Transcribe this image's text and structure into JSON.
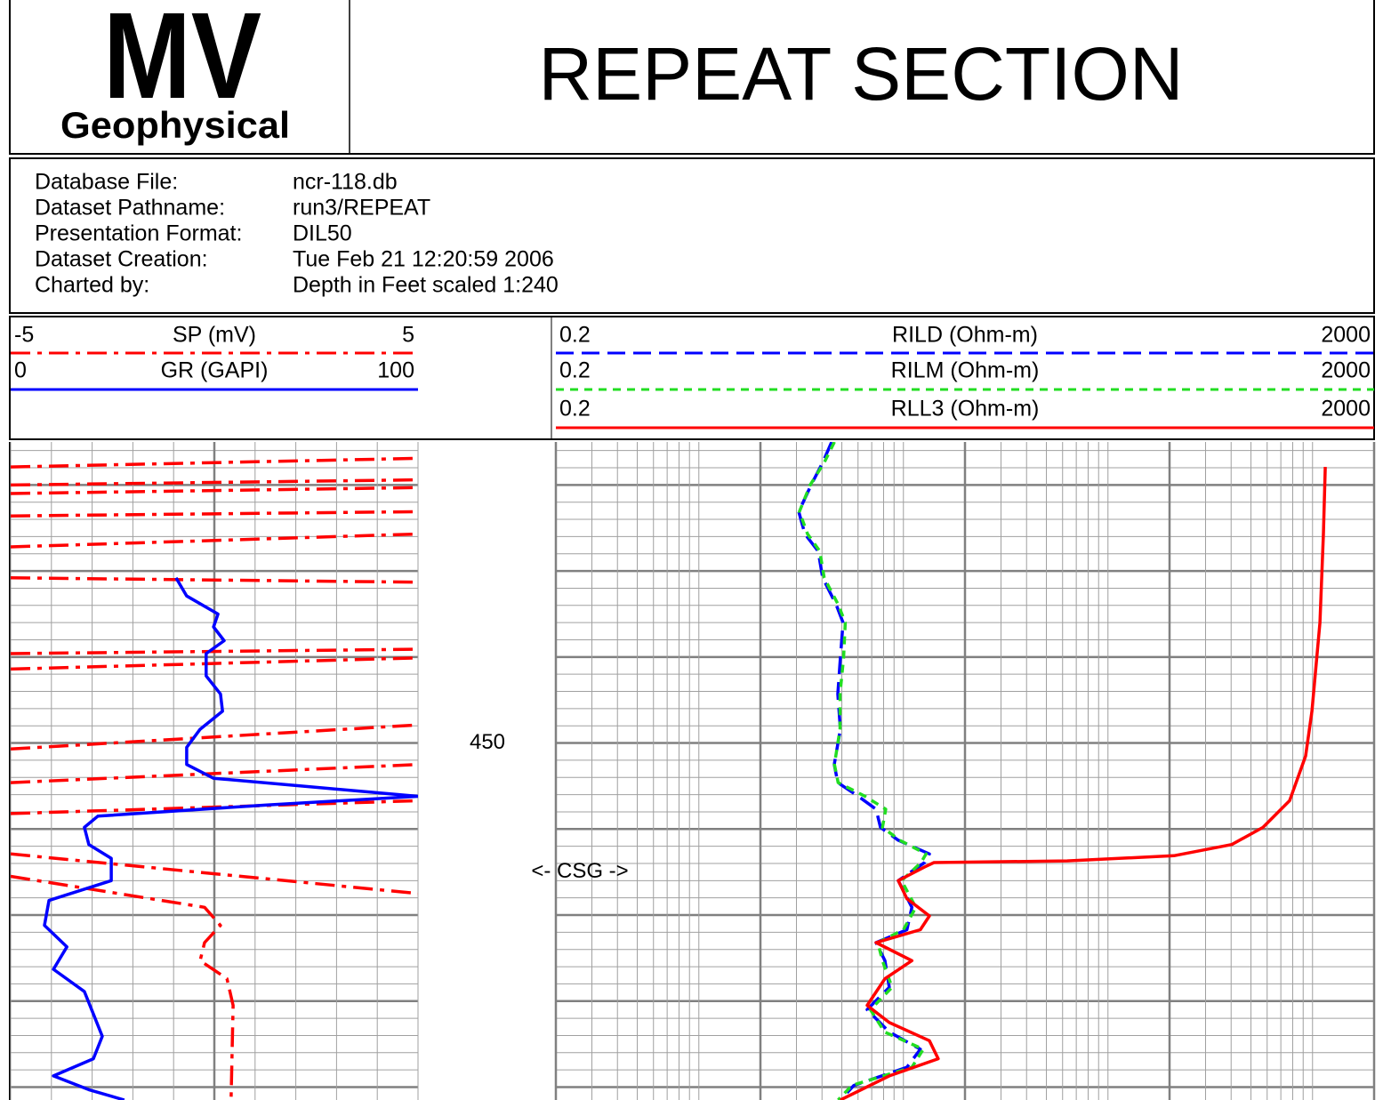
{
  "header": {
    "logo_main": "MV",
    "logo_sub": "Geophysical",
    "title": "REPEAT SECTION"
  },
  "info": [
    [
      "Database File:",
      "ncr-118.db"
    ],
    [
      "Dataset Pathname:",
      "run3/REPEAT"
    ],
    [
      "Presentation Format:",
      "DIL50"
    ],
    [
      "Dataset Creation:",
      "Tue Feb 21 12:20:59 2006"
    ],
    [
      "Charted by:",
      "Depth in Feet scaled 1:240"
    ]
  ],
  "chart_data": {
    "type": "well-log",
    "depth_label": 450,
    "annotation": "<- CSG ->",
    "annotation_depth": 465.0,
    "ylim": [
      415,
      491.5
    ],
    "yticks": [
      420,
      430,
      440,
      450,
      460,
      470,
      480,
      490
    ],
    "minor_yticks": [
      416,
      418,
      420,
      422,
      424,
      426,
      428,
      430,
      432,
      434,
      436,
      438,
      440,
      442,
      444,
      446,
      448,
      450,
      452,
      454,
      456,
      458,
      460,
      462,
      464,
      466,
      468,
      470,
      472,
      474,
      476,
      478,
      480,
      482,
      484,
      486,
      488,
      490
    ],
    "tracks": [
      {
        "scale": "linear",
        "xlim": [
          0,
          100
        ],
        "xticks": [
          0,
          10,
          20,
          30,
          40,
          50,
          60,
          70,
          80,
          90,
          100
        ],
        "major_xticks": [
          50
        ],
        "series": [
          {
            "name": "SP (mV)",
            "color": "#ff0000",
            "dash": "dashdot",
            "xlim": [
              -5,
              5
            ],
            "depth": [
              417.9,
              416.9,
              null,
              420.0,
              419.4,
              null,
              421.0,
              420.3,
              null,
              423.6,
              423.1,
              null,
              427.2,
              425.7,
              null,
              430.8,
              431.3,
              null,
              439.6,
              439.1,
              null,
              441.4,
              440.1,
              null,
              450.7,
              447.9,
              null,
              454.6,
              452.5,
              null,
              458.2,
              456.7,
              null,
              462.9,
              467.5,
              null,
              465.5,
              469.1,
              471.2,
              473.2,
              475.3,
              477.4,
              480.5,
              491.5
            ],
            "values": [
              -5,
              5,
              null,
              -5,
              5,
              null,
              -5,
              5,
              null,
              -5,
              5,
              null,
              -5,
              5,
              null,
              -5,
              5,
              null,
              -5,
              5,
              null,
              -5,
              5,
              null,
              -5,
              5,
              null,
              -5,
              5,
              null,
              -5,
              5,
              null,
              -5,
              5,
              null,
              -5,
              -0.24,
              0.15,
              -0.24,
              -0.35,
              0.31,
              0.46,
              0.41
            ]
          },
          {
            "name": "GR (GAPI)",
            "color": "#0000ff",
            "dash": "solid",
            "xlim": [
              0,
              100
            ],
            "depth": [
              430.8,
              432.9,
              435.0,
              436.5,
              438.1,
              439.6,
              442.2,
              444.3,
              446.3,
              448.4,
              450.5,
              452.5,
              454.1,
              455.1,
              456.2,
              457.2,
              458.5,
              459.8,
              461.8,
              463.4,
              466.0,
              468.3,
              471.2,
              473.7,
              476.3,
              478.9,
              481.5,
              484.1,
              486.7,
              488.7,
              490.3,
              491.5
            ],
            "values": [
              40.6,
              43.2,
              50.9,
              49.8,
              52.4,
              48.0,
              48.0,
              51.5,
              52.0,
              46.5,
              43.2,
              43.2,
              49.8,
              73.8,
              100,
              62.9,
              21.4,
              18.1,
              19.2,
              24.7,
              24.7,
              9.4,
              8.3,
              13.8,
              10.5,
              18.1,
              20.3,
              22.5,
              20.3,
              10.5,
              19.2,
              27.9
            ]
          }
        ]
      },
      {
        "scale": "log",
        "xlim": [
          0.2,
          2000
        ],
        "xticks": [
          0.2,
          0.3,
          0.4,
          0.5,
          0.6,
          0.7,
          0.8,
          0.9,
          1,
          2,
          3,
          4,
          5,
          6,
          7,
          8,
          9,
          10,
          20,
          30,
          40,
          50,
          60,
          70,
          80,
          90,
          100,
          200,
          300,
          400,
          500,
          600,
          700,
          800,
          900,
          1000,
          2000
        ],
        "major_xticks": [
          0.2,
          2,
          20,
          200,
          2000
        ],
        "series": [
          {
            "name": "RILD (Ohm-m)",
            "color": "#0000ff",
            "dash": "longdash",
            "xlim": [
              0.2,
              2000
            ],
            "depth": [
              415.0,
              417.4,
              420.0,
              423.1,
              425.7,
              427.7,
              430.8,
              433.9,
              436.0,
              440.1,
              444.3,
              448.4,
              452.5,
              454.6,
              456.2,
              457.7,
              459.8,
              461.3,
              462.9,
              463.9,
              466.0,
              469.1,
              471.7,
              473.2,
              475.3,
              478.4,
              481.0,
              483.6,
              485.6,
              487.7,
              489.8,
              491.5
            ],
            "values": [
              4.46,
              4.03,
              3.54,
              3.08,
              3.3,
              3.83,
              4.03,
              4.69,
              5.07,
              4.92,
              4.78,
              4.92,
              4.59,
              4.78,
              6.02,
              7.35,
              7.73,
              9.44,
              13.4,
              12.7,
              9.44,
              11.0,
              10.4,
              7.35,
              8.12,
              8.53,
              6.65,
              8.53,
              12.1,
              10.4,
              5.73,
              4.92
            ]
          },
          {
            "name": "RILM (Ohm-m)",
            "color": "#22dd22",
            "dash": "shortdash",
            "xlim": [
              0.2,
              2000
            ],
            "depth": [
              415.0,
              417.4,
              420.0,
              423.1,
              425.7,
              427.7,
              430.8,
              433.9,
              436.0,
              440.1,
              444.3,
              448.4,
              452.5,
              454.6,
              456.2,
              457.7,
              459.8,
              461.3,
              462.9,
              463.9,
              466.0,
              469.1,
              471.7,
              473.2,
              475.3,
              478.4,
              481.0,
              483.6,
              485.6,
              487.7,
              489.8,
              491.5
            ],
            "values": [
              4.6,
              4.1,
              3.5,
              3.1,
              3.4,
              3.9,
              4.1,
              4.8,
              5.2,
              5.1,
              4.9,
              4.9,
              4.6,
              4.8,
              6.5,
              8.2,
              7.9,
              9.6,
              12.9,
              12.2,
              9.8,
              11.5,
              10.0,
              7.5,
              7.9,
              8.8,
              6.9,
              8.1,
              12.5,
              11.0,
              5.6,
              4.8
            ]
          },
          {
            "name": "RLL3 (Ohm-m)",
            "color": "#ff0000",
            "dash": "solid",
            "xlim": [
              0.2,
              2000
            ],
            "depth": [
              417.9,
              425.7,
              436.0,
              446.3,
              451.5,
              456.7,
              459.8,
              461.8,
              463.1,
              463.7,
              463.9,
              464.4,
              466.0,
              468.1,
              470.1,
              471.7,
              473.2,
              475.3,
              477.4,
              480.5,
              482.5,
              484.6,
              486.7,
              488.7,
              491.5
            ],
            "values": [
              1154,
              1130,
              1087,
              993,
              925,
              773,
              573,
              403,
              210,
              63.2,
              14.1,
              12.7,
              9.44,
              10.4,
              13.4,
              12.1,
              7.35,
              11.0,
              8.12,
              6.65,
              8.53,
              13.4,
              14.8,
              8.53,
              4.92
            ]
          }
        ]
      }
    ]
  }
}
